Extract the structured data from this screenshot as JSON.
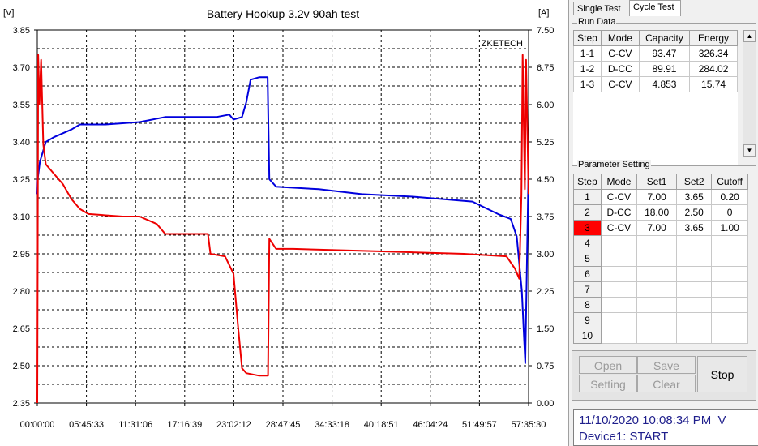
{
  "chart": {
    "title": "Battery Hookup 3.2v 90ah test",
    "left_unit": "[V]",
    "right_unit": "[A]",
    "brand": "ZKETECH",
    "left_ticks": [
      "3.85",
      "3.70",
      "3.55",
      "3.40",
      "3.25",
      "3.10",
      "2.95",
      "2.80",
      "2.65",
      "2.50",
      "2.35"
    ],
    "right_ticks": [
      "7.50",
      "6.75",
      "6.00",
      "5.25",
      "4.50",
      "3.75",
      "3.00",
      "2.25",
      "1.50",
      "0.75",
      "0.00"
    ],
    "x_ticks": [
      "00:00:00",
      "05:45:33",
      "11:31:06",
      "17:16:39",
      "23:02:12",
      "28:47:45",
      "34:33:18",
      "40:18:51",
      "46:04:24",
      "51:49:57",
      "57:35:30"
    ],
    "colors": {
      "voltage": "#0000dd",
      "current": "#ee0000",
      "grid": "#000000"
    }
  },
  "chart_data": {
    "type": "line",
    "x_unit": "hours",
    "xlim": [
      0,
      57.59
    ],
    "y_left_lim": [
      2.35,
      3.85
    ],
    "y_right_lim": [
      0,
      7.5
    ],
    "grid": true,
    "series": [
      {
        "axis": "left",
        "x": [
          0,
          0.05,
          0.3,
          1,
          2,
          4,
          5,
          8,
          12,
          15,
          19,
          21,
          22.5,
          23,
          24,
          24.5,
          25,
          26,
          27,
          27.2,
          28,
          33,
          38,
          44,
          51,
          54,
          55.5,
          56.2,
          56.8,
          57.2,
          57.59
        ],
        "y": [
          3.19,
          3.25,
          3.32,
          3.4,
          3.42,
          3.45,
          3.47,
          3.47,
          3.48,
          3.5,
          3.5,
          3.5,
          3.51,
          3.49,
          3.5,
          3.56,
          3.65,
          3.66,
          3.66,
          3.25,
          3.22,
          3.21,
          3.19,
          3.18,
          3.16,
          3.11,
          3.09,
          3.02,
          2.8,
          2.51,
          3.31
        ]
      },
      {
        "axis": "right",
        "x": [
          0,
          0.1,
          0.25,
          0.45,
          0.7,
          1,
          2,
          3,
          4,
          5,
          6,
          10,
          12,
          14,
          15,
          18,
          20,
          20.3,
          22,
          23,
          23.5,
          24,
          24.5,
          26,
          27,
          27.05,
          27.2,
          28,
          30,
          40,
          50,
          55,
          56,
          56.5,
          56.75,
          56.9,
          57.15,
          57.3,
          57.59
        ],
        "y": [
          0,
          7.0,
          6.0,
          6.9,
          5.2,
          4.8,
          4.6,
          4.4,
          4.1,
          3.9,
          3.8,
          3.75,
          3.75,
          3.6,
          3.4,
          3.4,
          3.4,
          3.0,
          2.95,
          2.6,
          1.6,
          0.7,
          0.6,
          0.55,
          0.55,
          0.55,
          3.3,
          3.1,
          3.1,
          3.05,
          3.0,
          2.95,
          2.7,
          2.5,
          4.2,
          7.0,
          4.3,
          6.9,
          4.2
        ]
      }
    ]
  },
  "tabs": [
    {
      "label": "Single Test",
      "active": false
    },
    {
      "label": "Cycle Test",
      "active": true
    }
  ],
  "run_data": {
    "title": "Run Data",
    "headers": [
      "Step",
      "Mode",
      "Capacity",
      "Energy"
    ],
    "rows": [
      [
        "1-1",
        "C-CV",
        "93.47",
        "326.34"
      ],
      [
        "1-2",
        "D-CC",
        "89.91",
        "284.02"
      ],
      [
        "1-3",
        "C-CV",
        "4.853",
        "15.74"
      ]
    ]
  },
  "params": {
    "title": "Parameter Setting",
    "headers": [
      "Step",
      "Mode",
      "Set1",
      "Set2",
      "Cutoff"
    ],
    "rows": [
      [
        "1",
        "C-CV",
        "7.00",
        "3.65",
        "0.20"
      ],
      [
        "2",
        "D-CC",
        "18.00",
        "2.50",
        "0"
      ],
      [
        "3",
        "C-CV",
        "7.00",
        "3.65",
        "1.00"
      ],
      [
        "4",
        "",
        "",
        "",
        ""
      ],
      [
        "5",
        "",
        "",
        "",
        ""
      ],
      [
        "6",
        "",
        "",
        "",
        ""
      ],
      [
        "7",
        "",
        "",
        "",
        ""
      ],
      [
        "8",
        "",
        "",
        "",
        ""
      ],
      [
        "9",
        "",
        "",
        "",
        ""
      ],
      [
        "10",
        "",
        "",
        "",
        ""
      ]
    ],
    "selected_step": "3"
  },
  "buttons": {
    "open": "Open",
    "save": "Save",
    "setting": "Setting",
    "clear": "Clear",
    "stop": "Stop"
  },
  "status": {
    "datetime": "11/10/2020 10:08:34 PM  V",
    "device": "Device1: START"
  }
}
